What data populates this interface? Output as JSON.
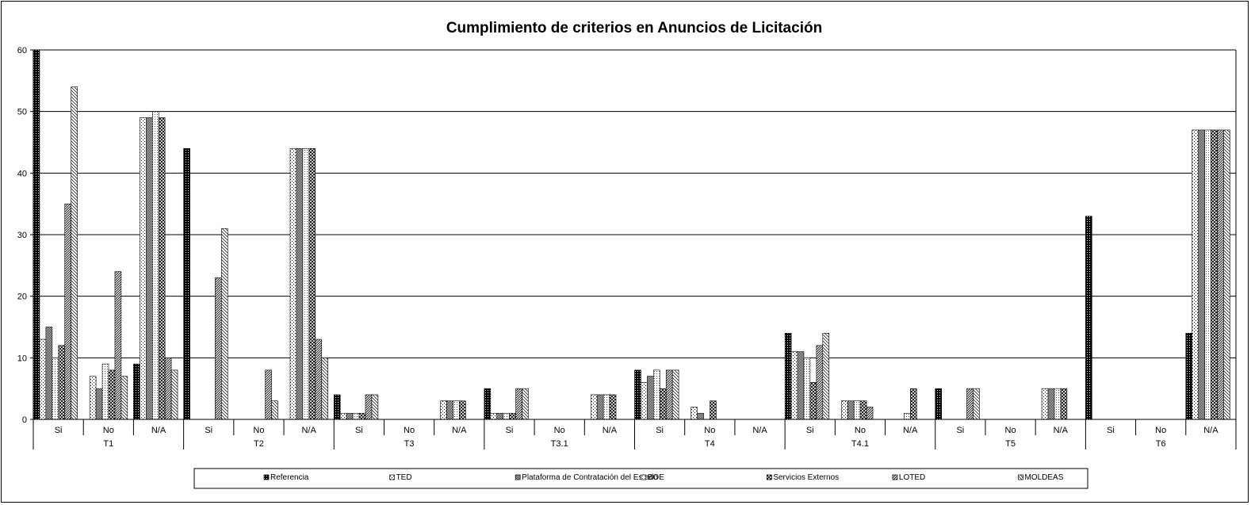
{
  "chart_data": {
    "type": "bar",
    "title": "Cumplimiento de criterios en Anuncios de Licitación",
    "xlabel": "",
    "ylabel": "",
    "ylim": [
      0,
      60
    ],
    "yticks": [
      0,
      10,
      20,
      30,
      40,
      50,
      60
    ],
    "grid": true,
    "legend_position": "bottom",
    "groups": [
      {
        "name": "T1",
        "categories": [
          "Si",
          "No",
          "N/A"
        ]
      },
      {
        "name": "T2",
        "categories": [
          "Si",
          "No",
          "N/A"
        ]
      },
      {
        "name": "T3",
        "categories": [
          "Si",
          "No",
          "N/A"
        ]
      },
      {
        "name": "T3.1",
        "categories": [
          "Si",
          "No",
          "N/A"
        ]
      },
      {
        "name": "T4",
        "categories": [
          "Si",
          "No",
          "N/A"
        ]
      },
      {
        "name": "T4.1",
        "categories": [
          "Si",
          "No",
          "N/A"
        ]
      },
      {
        "name": "T5",
        "categories": [
          "Si",
          "No",
          "N/A"
        ]
      },
      {
        "name": "T6",
        "categories": [
          "Si",
          "No",
          "N/A"
        ]
      }
    ],
    "series": [
      {
        "name": "Referencia",
        "pattern": "dense-black",
        "values": [
          60,
          0,
          9,
          44,
          0,
          0,
          4,
          0,
          0,
          5,
          0,
          0,
          8,
          0,
          0,
          14,
          0,
          0,
          5,
          0,
          0,
          33,
          0,
          14
        ]
      },
      {
        "name": "TED",
        "pattern": "light-dots",
        "values": [
          13,
          7,
          49,
          0,
          0,
          44,
          1,
          0,
          3,
          1,
          0,
          4,
          6,
          2,
          0,
          11,
          3,
          0,
          0,
          0,
          5,
          0,
          0,
          47
        ]
      },
      {
        "name": "Plataforma de Contratación del Estado",
        "pattern": "checker-dark",
        "values": [
          15,
          5,
          49,
          0,
          0,
          44,
          1,
          0,
          3,
          1,
          0,
          4,
          7,
          1,
          0,
          11,
          3,
          0,
          0,
          0,
          5,
          0,
          0,
          47
        ]
      },
      {
        "name": "BOE",
        "pattern": "light-dots-2",
        "values": [
          10,
          9,
          50,
          0,
          0,
          44,
          1,
          0,
          3,
          1,
          0,
          4,
          8,
          0,
          0,
          10,
          3,
          1,
          0,
          0,
          5,
          0,
          0,
          47
        ]
      },
      {
        "name": "Servicios Externos",
        "pattern": "cross-dark",
        "values": [
          12,
          8,
          49,
          0,
          0,
          44,
          1,
          0,
          3,
          1,
          0,
          4,
          5,
          3,
          0,
          6,
          3,
          5,
          0,
          0,
          5,
          0,
          0,
          47
        ]
      },
      {
        "name": "LOTED",
        "pattern": "diag-dense",
        "values": [
          35,
          24,
          10,
          23,
          8,
          13,
          4,
          0,
          0,
          5,
          0,
          0,
          8,
          0,
          0,
          12,
          2,
          0,
          5,
          0,
          0,
          0,
          0,
          47
        ]
      },
      {
        "name": "MOLDEAS",
        "pattern": "diag-light",
        "values": [
          54,
          7,
          8,
          31,
          3,
          10,
          4,
          0,
          0,
          5,
          0,
          0,
          8,
          0,
          0,
          14,
          0,
          0,
          5,
          0,
          0,
          0,
          0,
          47
        ]
      }
    ]
  }
}
